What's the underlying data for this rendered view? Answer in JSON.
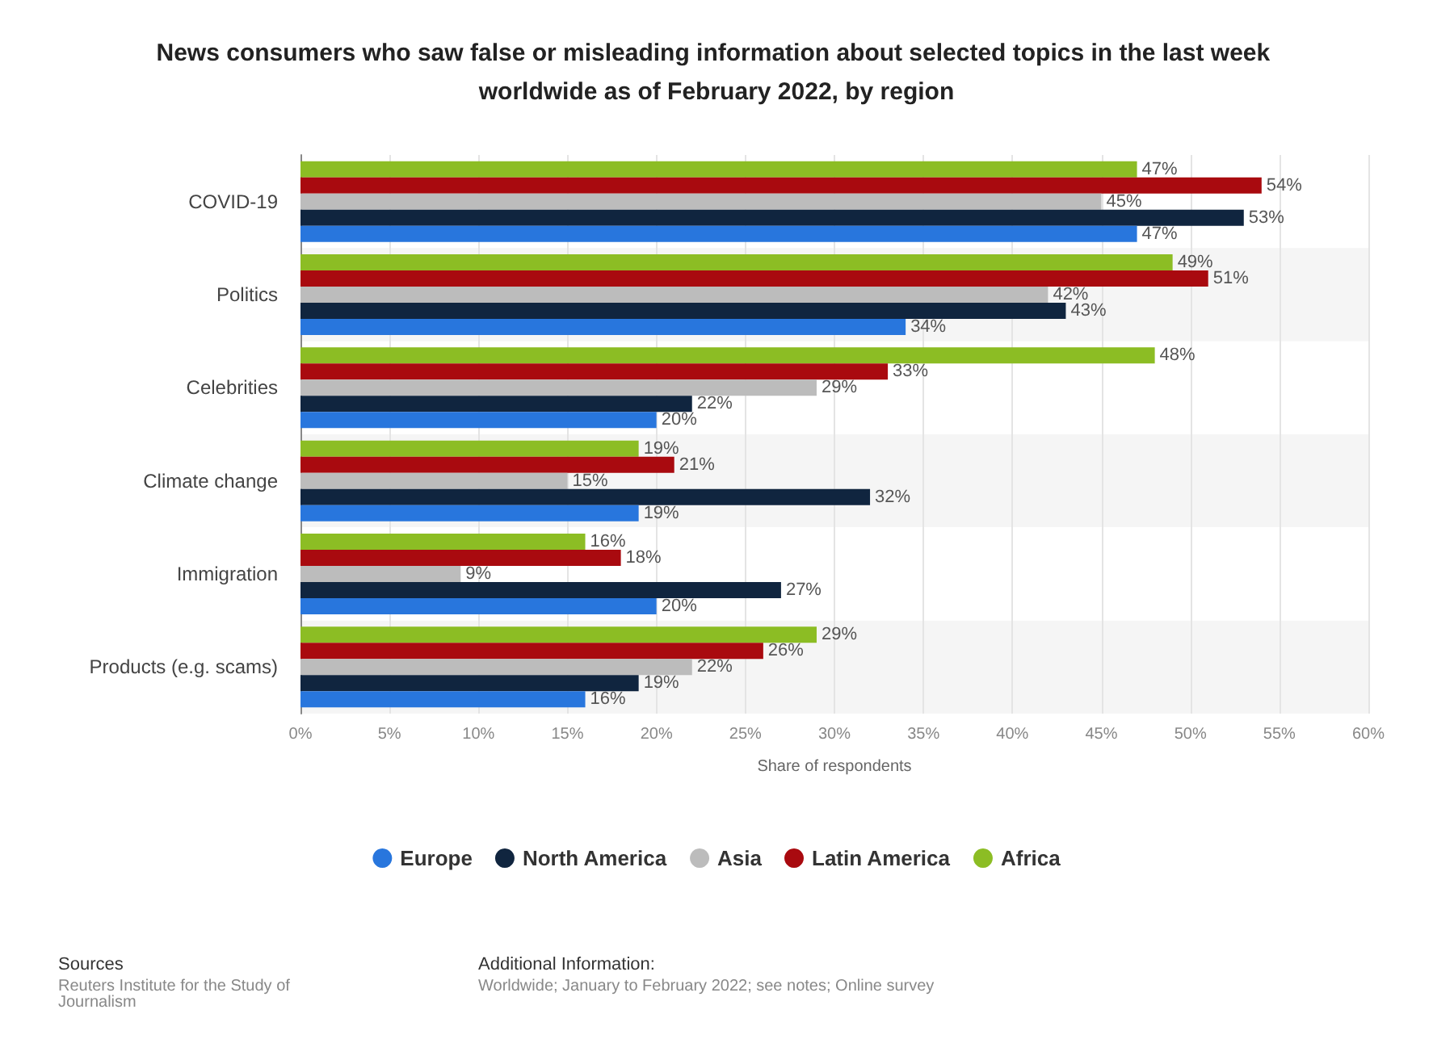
{
  "chart_data": {
    "type": "bar",
    "orientation": "horizontal",
    "title": "News consumers who saw false or misleading information about selected topics in the last week worldwide as of February 2022, by region",
    "categories": [
      "COVID-19",
      "Politics",
      "Celebrities",
      "Climate change",
      "Immigration",
      "Products (e.g. scams)"
    ],
    "series": [
      {
        "name": "Europe",
        "color": "#2876dd",
        "values": [
          47,
          34,
          20,
          19,
          20,
          16
        ],
        "value_labels": [
          "47%",
          "34%",
          "20%",
          "19%",
          "20%",
          "16%"
        ]
      },
      {
        "name": "North America",
        "color": "#10253f",
        "values": [
          53,
          43,
          22,
          32,
          27,
          19
        ],
        "value_labels": [
          "53%",
          "43%",
          "22%",
          "32%",
          "27%",
          "19%"
        ]
      },
      {
        "name": "Asia",
        "color": "#bcbcbc",
        "values": [
          45,
          42,
          29,
          15,
          9,
          22
        ],
        "value_labels": [
          "45%",
          "42%",
          "29%",
          "15%",
          "9%",
          "22%"
        ]
      },
      {
        "name": "Latin America",
        "color": "#a90a0f",
        "values": [
          54,
          51,
          33,
          21,
          18,
          26
        ],
        "value_labels": [
          "54%",
          "51%",
          "33%",
          "21%",
          "18%",
          "26%"
        ]
      },
      {
        "name": "Africa",
        "color": "#8cbd24",
        "values": [
          47,
          49,
          48,
          19,
          16,
          29
        ],
        "value_labels": [
          "47%",
          "49%",
          "48%",
          "19%",
          "16%",
          "29%"
        ]
      }
    ],
    "xlabel": "Share of respondents",
    "xlim": [
      0,
      60
    ],
    "xticks": [
      {
        "value": 0,
        "label": "0%"
      },
      {
        "value": 5,
        "label": "5%"
      },
      {
        "value": 10,
        "label": "10%"
      },
      {
        "value": 15,
        "label": "15%"
      },
      {
        "value": 20,
        "label": "20%"
      },
      {
        "value": 25,
        "label": "25%"
      },
      {
        "value": 30,
        "label": "30%"
      },
      {
        "value": 35,
        "label": "35%"
      },
      {
        "value": 40,
        "label": "40%"
      },
      {
        "value": 45,
        "label": "45%"
      },
      {
        "value": 50,
        "label": "50%"
      },
      {
        "value": 55,
        "label": "55%"
      },
      {
        "value": 60,
        "label": "60%"
      }
    ],
    "grid": "x",
    "legend": "bottom",
    "annotations": [
      "Sources",
      "Reuters Institute for the Study of Journalism",
      "Additional Information:",
      "Worldwide; January to February 2022; see notes; Online survey"
    ]
  }
}
